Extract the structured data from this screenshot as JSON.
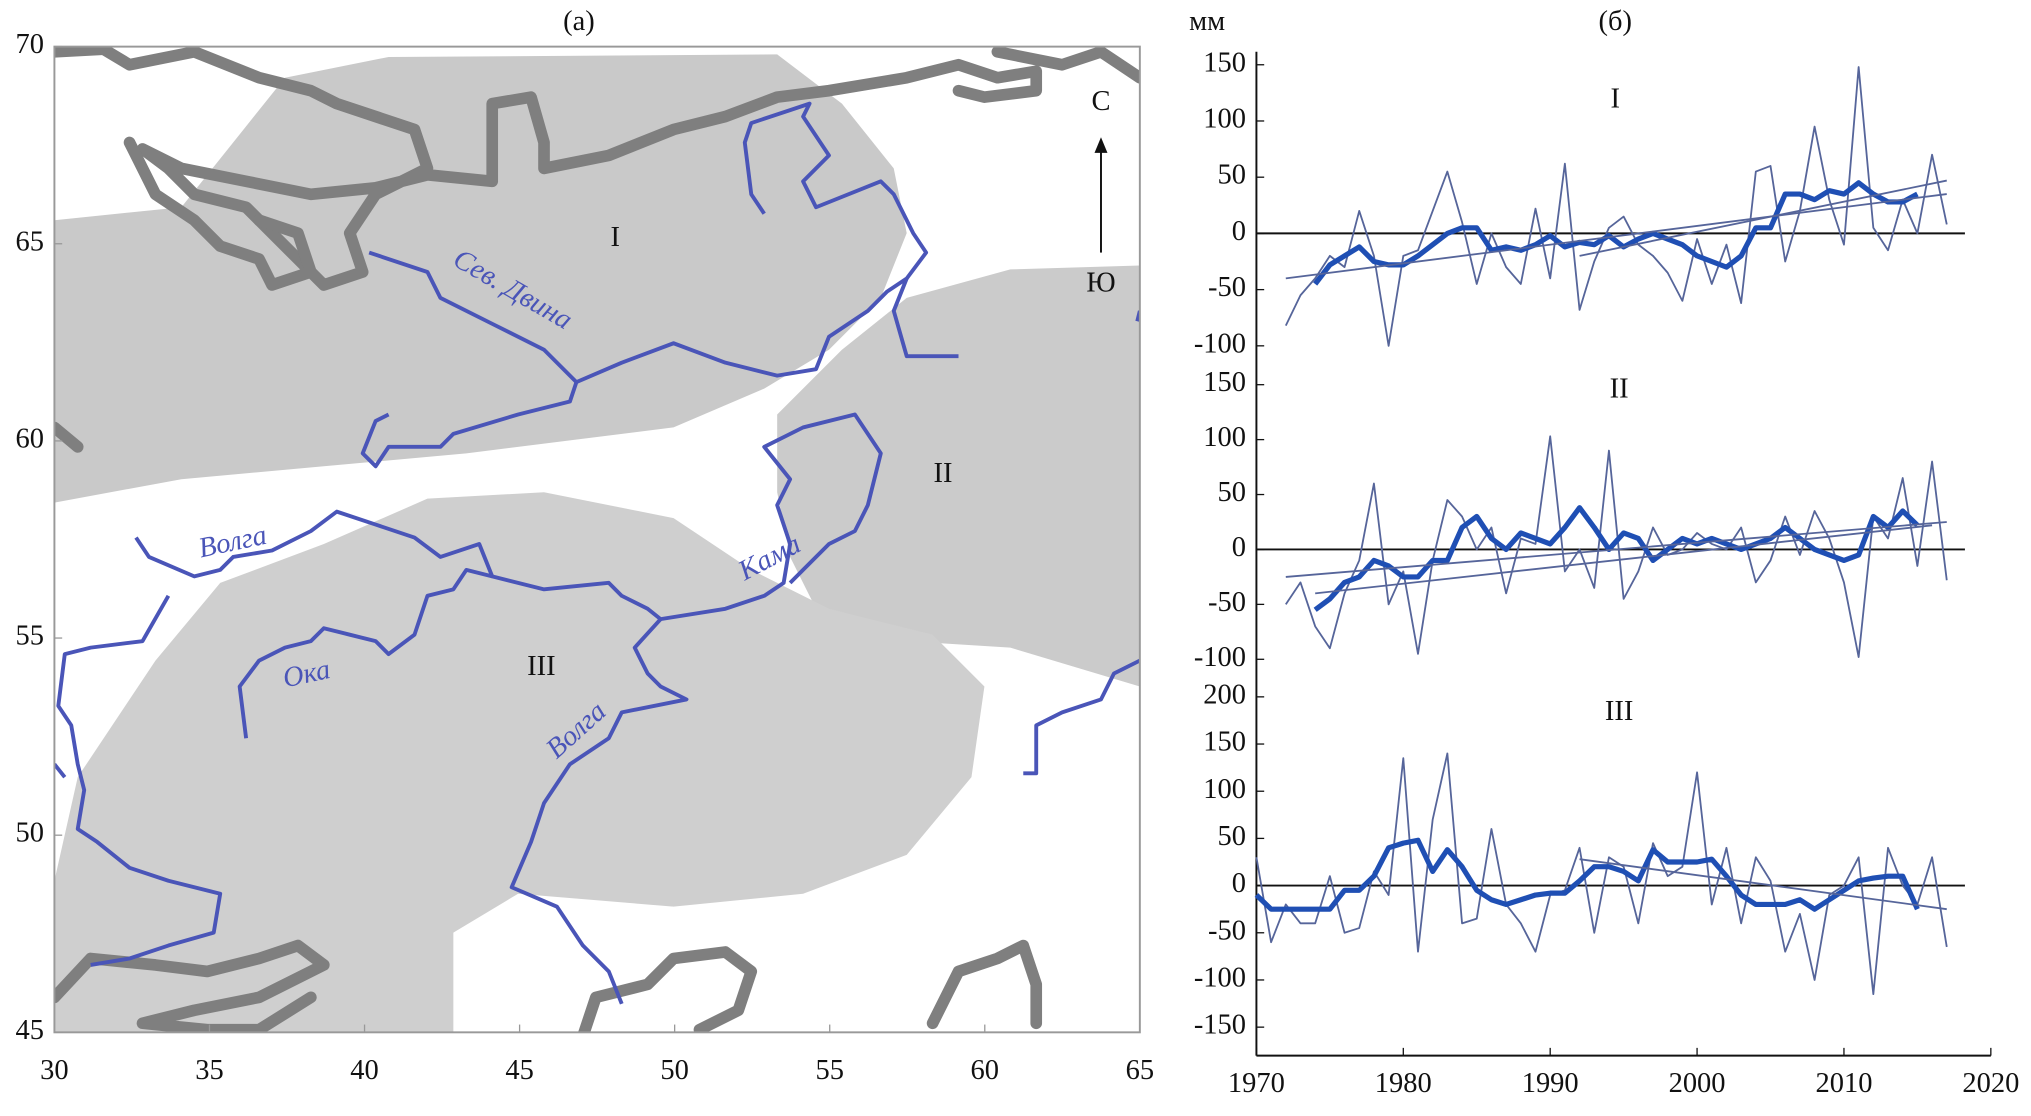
{
  "chart_data": [
    {
      "type": "map",
      "title": "(a)",
      "xlim": [
        30,
        65
      ],
      "ylim": [
        45,
        70
      ],
      "xticks": [
        30,
        35,
        40,
        45,
        50,
        55,
        60,
        65
      ],
      "yticks": [
        45,
        50,
        55,
        60,
        65,
        70
      ],
      "annotations": [
        "I",
        "II",
        "III",
        "Сев. Двина",
        "Волга",
        "Кама",
        "Ока",
        "Волга",
        "С",
        "Ю"
      ]
    },
    {
      "type": "line",
      "title": "(б)",
      "y_label": "мм",
      "label": "I",
      "xlim": [
        1970,
        2020
      ],
      "ylim": [
        -100,
        150
      ],
      "yticks": [
        -100,
        -50,
        0,
        50,
        100,
        150
      ],
      "x": [
        1972,
        1973,
        1974,
        1975,
        1976,
        1977,
        1978,
        1979,
        1980,
        1981,
        1982,
        1983,
        1984,
        1985,
        1986,
        1987,
        1988,
        1989,
        1990,
        1991,
        1992,
        1993,
        1994,
        1995,
        1996,
        1997,
        1998,
        1999,
        2000,
        2001,
        2002,
        2003,
        2004,
        2005,
        2006,
        2007,
        2008,
        2009,
        2010,
        2011,
        2012,
        2013,
        2014,
        2015,
        2016,
        2017
      ],
      "series": [
        {
          "color": "#56659a",
          "values": [
            -82,
            -55,
            -40,
            -20,
            -30,
            20,
            -20,
            -100,
            -20,
            -15,
            20,
            55,
            10,
            -45,
            0,
            -30,
            -45,
            22,
            -40,
            62,
            -68,
            -25,
            5,
            15,
            -10,
            -20,
            -35,
            -60,
            -5,
            -45,
            -10,
            -62,
            55,
            60,
            -25,
            20,
            95,
            30,
            -10,
            148,
            5,
            -15,
            30,
            0,
            70,
            8
          ]
        },
        {
          "color": "#1f4fb4",
          "values": [
            null,
            null,
            -45,
            -28,
            -20,
            -12,
            -25,
            -28,
            -28,
            -20,
            -10,
            0,
            5,
            5,
            -15,
            -12,
            -15,
            -10,
            -2,
            -12,
            -8,
            -10,
            -2,
            -12,
            -5,
            0,
            -5,
            -10,
            -20,
            -25,
            -30,
            -20,
            5,
            5,
            35,
            35,
            30,
            38,
            35,
            45,
            35,
            28,
            28,
            35,
            null,
            null
          ]
        },
        {
          "color": "#56659a",
          "x": [
            1972,
            2017
          ],
          "values": [
            -40,
            35
          ]
        },
        {
          "color": "#56659a",
          "x": [
            1992,
            2017
          ],
          "values": [
            -20,
            47
          ]
        }
      ]
    },
    {
      "type": "line",
      "label": "II",
      "xlim": [
        1970,
        2020
      ],
      "ylim": [
        -100,
        150
      ],
      "yticks": [
        -100,
        -50,
        0,
        50,
        100,
        150
      ],
      "x": [
        1972,
        1973,
        1974,
        1975,
        1976,
        1977,
        1978,
        1979,
        1980,
        1981,
        1982,
        1983,
        1984,
        1985,
        1986,
        1987,
        1988,
        1989,
        1990,
        1991,
        1992,
        1993,
        1994,
        1995,
        1996,
        1997,
        1998,
        1999,
        2000,
        2001,
        2002,
        2003,
        2004,
        2005,
        2006,
        2007,
        2008,
        2009,
        2010,
        2011,
        2012,
        2013,
        2014,
        2015,
        2016,
        2017
      ],
      "series": [
        {
          "color": "#56659a",
          "values": [
            -50,
            -30,
            -70,
            -90,
            -40,
            -10,
            60,
            -50,
            -20,
            -95,
            -10,
            45,
            30,
            0,
            20,
            -40,
            10,
            5,
            103,
            -20,
            0,
            -35,
            90,
            -45,
            -20,
            20,
            -5,
            0,
            15,
            5,
            0,
            20,
            -30,
            -10,
            30,
            -5,
            35,
            10,
            -30,
            -98,
            30,
            10,
            65,
            -15,
            80,
            -28
          ]
        },
        {
          "color": "#1f4fb4",
          "values": [
            null,
            null,
            -55,
            -45,
            -30,
            -25,
            -10,
            -15,
            -25,
            -25,
            -10,
            -10,
            20,
            30,
            10,
            0,
            15,
            10,
            5,
            20,
            38,
            20,
            0,
            15,
            10,
            -10,
            0,
            10,
            5,
            10,
            5,
            0,
            5,
            10,
            20,
            10,
            0,
            -5,
            -10,
            -5,
            30,
            20,
            35,
            22,
            null,
            null
          ]
        },
        {
          "color": "#56659a",
          "x": [
            1972,
            2017
          ],
          "values": [
            -25,
            25
          ]
        },
        {
          "color": "#56659a",
          "x": [
            1974,
            2016
          ],
          "values": [
            -40,
            22
          ]
        }
      ]
    },
    {
      "type": "line",
      "label": "III",
      "xlim": [
        1970,
        2020
      ],
      "ylim": [
        -150,
        200
      ],
      "yticks": [
        -150,
        -100,
        -50,
        0,
        50,
        100,
        150,
        200
      ],
      "xticks": [
        1970,
        1980,
        1990,
        2000,
        2010,
        2020
      ],
      "x": [
        1970,
        1971,
        1972,
        1973,
        1974,
        1975,
        1976,
        1977,
        1978,
        1979,
        1980,
        1981,
        1982,
        1983,
        1984,
        1985,
        1986,
        1987,
        1988,
        1989,
        1990,
        1991,
        1992,
        1993,
        1994,
        1995,
        1996,
        1997,
        1998,
        1999,
        2000,
        2001,
        2002,
        2003,
        2004,
        2005,
        2006,
        2007,
        2008,
        2009,
        2010,
        2011,
        2012,
        2013,
        2014,
        2015,
        2016,
        2017
      ],
      "series": [
        {
          "color": "#56659a",
          "values": [
            30,
            -60,
            -20,
            -40,
            -40,
            10,
            -50,
            -45,
            15,
            -10,
            135,
            -70,
            70,
            140,
            -40,
            -35,
            60,
            -20,
            -40,
            -70,
            -10,
            -5,
            40,
            -50,
            30,
            20,
            -40,
            45,
            10,
            20,
            120,
            -20,
            40,
            -40,
            30,
            5,
            -70,
            -30,
            -100,
            -10,
            0,
            30,
            -115,
            40,
            0,
            -20,
            30,
            -65
          ]
        },
        {
          "color": "#1f4fb4",
          "values": [
            -10,
            -25,
            -25,
            -25,
            -25,
            -25,
            -5,
            -5,
            10,
            40,
            45,
            48,
            15,
            38,
            20,
            -5,
            -15,
            -20,
            -15,
            -10,
            -8,
            -8,
            5,
            20,
            20,
            15,
            5,
            38,
            25,
            25,
            25,
            28,
            10,
            -10,
            -20,
            -20,
            -20,
            -15,
            -25,
            -15,
            -5,
            5,
            8,
            10,
            10,
            -25,
            null,
            null
          ]
        },
        {
          "color": "#56659a",
          "x": [
            1992,
            2017
          ],
          "values": [
            28,
            -25
          ]
        }
      ]
    }
  ]
}
